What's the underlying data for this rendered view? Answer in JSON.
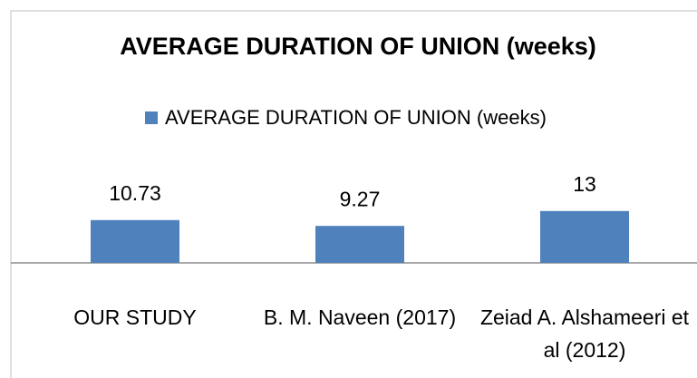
{
  "chart_data": {
    "type": "bar",
    "title": "AVERAGE DURATION OF UNION (weeks)",
    "categories": [
      "OUR STUDY",
      "B. M. Naveen (2017)",
      "Zeiad A. Alshameeri et al (2012)"
    ],
    "series": [
      {
        "name": "AVERAGE DURATION OF UNION (weeks)",
        "color": "#4f81bd",
        "values": [
          10.73,
          9.27,
          13
        ]
      }
    ],
    "legend": "top"
  }
}
